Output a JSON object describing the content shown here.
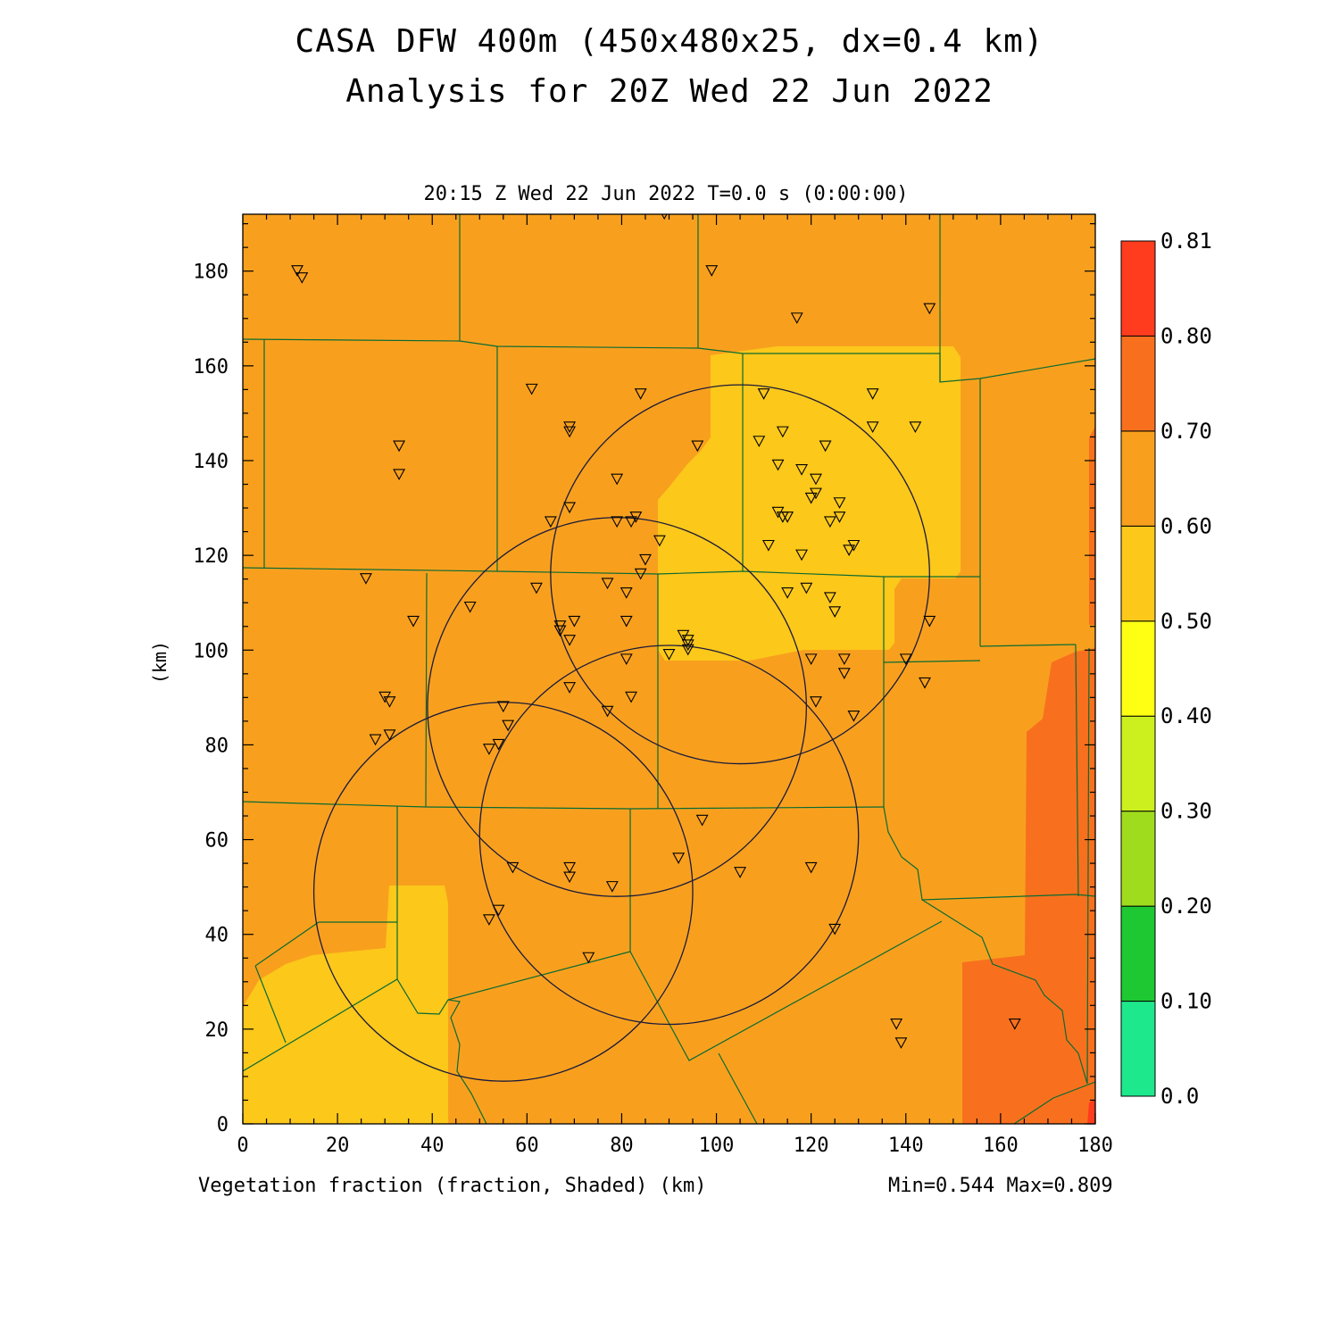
{
  "header": {
    "title_line1": "CASA DFW 400m (450x480x25, dx=0.4 km)",
    "title_line2": "Analysis for 20Z Wed 22 Jun 2022",
    "time_label": "20:15 Z Wed 22 Jun 2022   T=0.0 s (0:00:00)"
  },
  "footer": {
    "field_label": "Vegetation fraction (fraction, Shaded)  (km)",
    "minmax": "Min=0.544 Max=0.809"
  },
  "axes": {
    "ylabel": "(km)",
    "x_ticks": [
      0,
      20,
      40,
      60,
      80,
      100,
      120,
      140,
      160,
      180
    ],
    "y_ticks": [
      0,
      20,
      40,
      60,
      80,
      100,
      120,
      140,
      160,
      180
    ],
    "xlim": [
      0,
      180
    ],
    "ylim": [
      0,
      192
    ]
  },
  "colorbar": {
    "levels": [
      "0.0",
      "0.10",
      "0.20",
      "0.30",
      "0.40",
      "0.50",
      "0.60",
      "0.70",
      "0.80",
      "0.81"
    ],
    "colors": [
      "#1ee88c",
      "#1ec832",
      "#a0dc1e",
      "#ccf01e",
      "#ffff14",
      "#fcc81a",
      "#f8a01e",
      "#f8701e",
      "#ff3c1e"
    ]
  },
  "colors": {
    "base_field": "#f8a01e",
    "low_field": "#fcc81a",
    "high_field": "#f8701e",
    "boundary": "#0a6a32"
  },
  "radar_circles_km": [
    {
      "cx": 105,
      "cy": 116,
      "r": 40
    },
    {
      "cx": 79,
      "cy": 88,
      "r": 40
    },
    {
      "cx": 90,
      "cy": 61,
      "r": 40
    },
    {
      "cx": 55,
      "cy": 49,
      "r": 40
    }
  ],
  "stations_km": [
    [
      11.5,
      180
    ],
    [
      12.5,
      178.5
    ],
    [
      89,
      192
    ],
    [
      99,
      180
    ],
    [
      117,
      170
    ],
    [
      145,
      172
    ],
    [
      61,
      155
    ],
    [
      84,
      154
    ],
    [
      110,
      154
    ],
    [
      133,
      154
    ],
    [
      133,
      147
    ],
    [
      142,
      147
    ],
    [
      33,
      143
    ],
    [
      33,
      137
    ],
    [
      69,
      147
    ],
    [
      69,
      146
    ],
    [
      96,
      143
    ],
    [
      109,
      144
    ],
    [
      114,
      146
    ],
    [
      123,
      143
    ],
    [
      79,
      136
    ],
    [
      113,
      139
    ],
    [
      118,
      138
    ],
    [
      121,
      136
    ],
    [
      120,
      132
    ],
    [
      121,
      133
    ],
    [
      126,
      131
    ],
    [
      126,
      128
    ],
    [
      113,
      129
    ],
    [
      114,
      128
    ],
    [
      115,
      128
    ],
    [
      124,
      127
    ],
    [
      69,
      130
    ],
    [
      65,
      127
    ],
    [
      79,
      127
    ],
    [
      82,
      127
    ],
    [
      83,
      128
    ],
    [
      88,
      123
    ],
    [
      111,
      122
    ],
    [
      118,
      120
    ],
    [
      128,
      121
    ],
    [
      129,
      122
    ],
    [
      85,
      119
    ],
    [
      84,
      116
    ],
    [
      26,
      115
    ],
    [
      62,
      113
    ],
    [
      77,
      114
    ],
    [
      81,
      112
    ],
    [
      115,
      112
    ],
    [
      119,
      113
    ],
    [
      124,
      111
    ],
    [
      125,
      108
    ],
    [
      48,
      109
    ],
    [
      36,
      106
    ],
    [
      67,
      105
    ],
    [
      67,
      104
    ],
    [
      70,
      106
    ],
    [
      81,
      106
    ],
    [
      93,
      103
    ],
    [
      94,
      102
    ],
    [
      94,
      101
    ],
    [
      94,
      100
    ],
    [
      69,
      102
    ],
    [
      145,
      106
    ],
    [
      81,
      98
    ],
    [
      90,
      99
    ],
    [
      120,
      98
    ],
    [
      127,
      98
    ],
    [
      127,
      95
    ],
    [
      140,
      98
    ],
    [
      144,
      93
    ],
    [
      69,
      92
    ],
    [
      82,
      90
    ],
    [
      121,
      89
    ],
    [
      30,
      90
    ],
    [
      31,
      89
    ],
    [
      77,
      87
    ],
    [
      55,
      88
    ],
    [
      56,
      84
    ],
    [
      129,
      86
    ],
    [
      28,
      81
    ],
    [
      31,
      82
    ],
    [
      52,
      79
    ],
    [
      54,
      80
    ],
    [
      97,
      64
    ],
    [
      92,
      56
    ],
    [
      57,
      54
    ],
    [
      69,
      54
    ],
    [
      69,
      52
    ],
    [
      78,
      50
    ],
    [
      105,
      53
    ],
    [
      120,
      54
    ],
    [
      52,
      43
    ],
    [
      54,
      45
    ],
    [
      125,
      41
    ],
    [
      73,
      35
    ],
    [
      138,
      21
    ],
    [
      139,
      17
    ],
    [
      163,
      21
    ]
  ]
}
